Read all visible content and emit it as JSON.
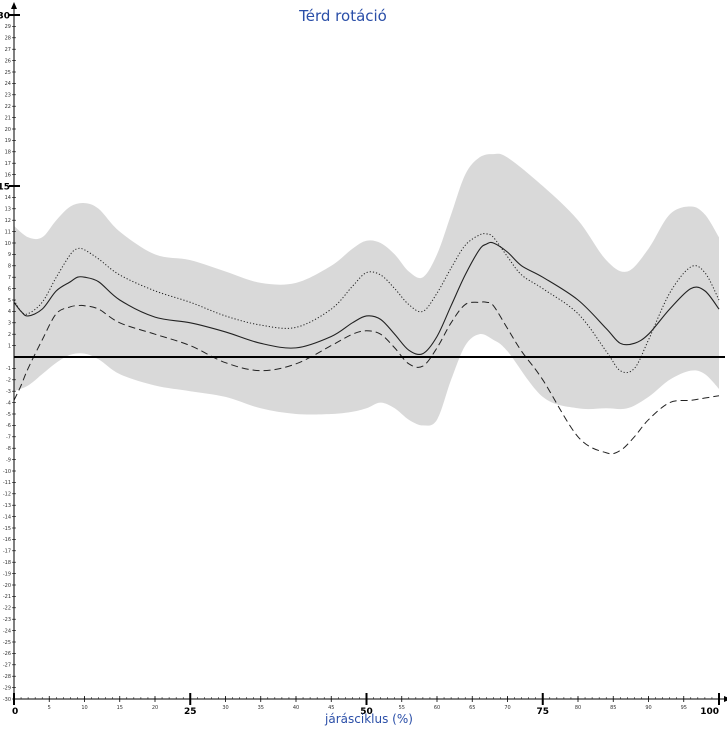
{
  "chart_data": {
    "type": "line",
    "title": "Térd rotáció",
    "xlabel": "járásciklus (%)",
    "ylabel": "",
    "xlim": [
      0,
      100
    ],
    "ylim": [
      -30,
      30
    ],
    "x_major_ticks": [
      "0",
      "25",
      "50",
      "75",
      "100"
    ],
    "x_minor_ticks": [
      "5",
      "10",
      "15",
      "20",
      "30",
      "35",
      "40",
      "45",
      "55",
      "60",
      "65",
      "70",
      "80",
      "85",
      "90",
      "95"
    ],
    "y_major_ticks": [
      "30",
      "15"
    ],
    "grid": false,
    "zero_line": true,
    "band": {
      "color": "#d9d9d9",
      "x": [
        0,
        2,
        4,
        6,
        8,
        10,
        12,
        15,
        20,
        25,
        30,
        35,
        40,
        45,
        48,
        50,
        52,
        54,
        56,
        58,
        60,
        62,
        64,
        66,
        68,
        70,
        75,
        80,
        84,
        87,
        90,
        93,
        96,
        98,
        100
      ],
      "upper": [
        11.5,
        10.5,
        10.5,
        12.0,
        13.2,
        13.5,
        13.0,
        11.0,
        9.0,
        8.5,
        7.5,
        6.5,
        6.5,
        8.0,
        9.5,
        10.2,
        10.0,
        9.0,
        7.5,
        7.0,
        9.0,
        12.5,
        16.0,
        17.5,
        17.8,
        17.5,
        15.0,
        12.0,
        8.5,
        7.5,
        9.5,
        12.5,
        13.2,
        12.5,
        10.5
      ],
      "lower": [
        -3.0,
        -2.5,
        -1.5,
        -0.5,
        0.2,
        0.3,
        -0.2,
        -1.5,
        -2.5,
        -3.0,
        -3.5,
        -4.5,
        -5.0,
        -5.0,
        -4.8,
        -4.5,
        -4.0,
        -4.5,
        -5.5,
        -6.0,
        -5.5,
        -2.0,
        1.0,
        2.0,
        1.5,
        0.5,
        -3.5,
        -4.5,
        -4.5,
        -4.5,
        -3.5,
        -2.0,
        -1.2,
        -1.5,
        -2.8
      ]
    },
    "series": [
      {
        "style": "solid",
        "x": [
          0,
          1,
          2,
          4,
          6,
          8,
          9,
          10,
          12,
          15,
          20,
          25,
          30,
          35,
          40,
          45,
          48,
          50,
          52,
          54,
          56,
          58,
          60,
          62,
          64,
          66,
          67,
          68,
          70,
          72,
          75,
          80,
          84,
          86,
          88,
          90,
          93,
          96,
          98,
          100
        ],
        "y": [
          4.8,
          4.0,
          3.6,
          4.2,
          5.8,
          6.6,
          7.0,
          7.0,
          6.6,
          5.0,
          3.5,
          3.0,
          2.2,
          1.2,
          0.8,
          1.8,
          3.0,
          3.6,
          3.3,
          2.0,
          0.6,
          0.3,
          1.8,
          4.5,
          7.2,
          9.4,
          9.9,
          10.0,
          9.2,
          8.0,
          7.0,
          5.0,
          2.5,
          1.2,
          1.2,
          2.0,
          4.2,
          6.0,
          5.8,
          4.2
        ]
      },
      {
        "style": "dotted",
        "x": [
          0,
          1,
          2,
          4,
          6,
          8,
          9,
          10,
          12,
          15,
          20,
          25,
          30,
          35,
          40,
          45,
          48,
          50,
          52,
          54,
          56,
          58,
          60,
          62,
          64,
          66,
          67,
          68,
          70,
          72,
          75,
          80,
          84,
          86,
          88,
          90,
          93,
          96,
          98,
          100
        ],
        "y": [
          5.0,
          4.0,
          3.8,
          4.8,
          7.0,
          9.0,
          9.5,
          9.4,
          8.6,
          7.2,
          5.8,
          4.8,
          3.6,
          2.8,
          2.6,
          4.2,
          6.2,
          7.4,
          7.2,
          6.0,
          4.6,
          4.0,
          5.6,
          7.8,
          9.8,
          10.7,
          10.8,
          10.5,
          8.8,
          7.2,
          6.0,
          3.8,
          0.5,
          -1.2,
          -1.0,
          1.5,
          5.6,
          7.9,
          7.4,
          5.0
        ]
      },
      {
        "style": "dashed",
        "x": [
          0,
          1,
          2,
          4,
          6,
          8,
          9,
          10,
          12,
          15,
          20,
          25,
          30,
          35,
          40,
          45,
          48,
          50,
          52,
          54,
          56,
          58,
          60,
          62,
          64,
          66,
          67,
          68,
          70,
          72,
          75,
          80,
          84,
          86,
          88,
          90,
          93,
          96,
          98,
          100
        ],
        "y": [
          -3.8,
          -2.5,
          -1.0,
          1.5,
          3.8,
          4.4,
          4.5,
          4.5,
          4.2,
          3.0,
          2.0,
          1.0,
          -0.5,
          -1.2,
          -0.6,
          1.0,
          2.0,
          2.3,
          2.0,
          0.8,
          -0.6,
          -0.8,
          0.8,
          3.0,
          4.6,
          4.8,
          4.8,
          4.5,
          2.5,
          0.5,
          -2.0,
          -7.0,
          -8.4,
          -8.2,
          -7.0,
          -5.5,
          -4.0,
          -3.8,
          -3.6,
          -3.4
        ]
      }
    ]
  }
}
